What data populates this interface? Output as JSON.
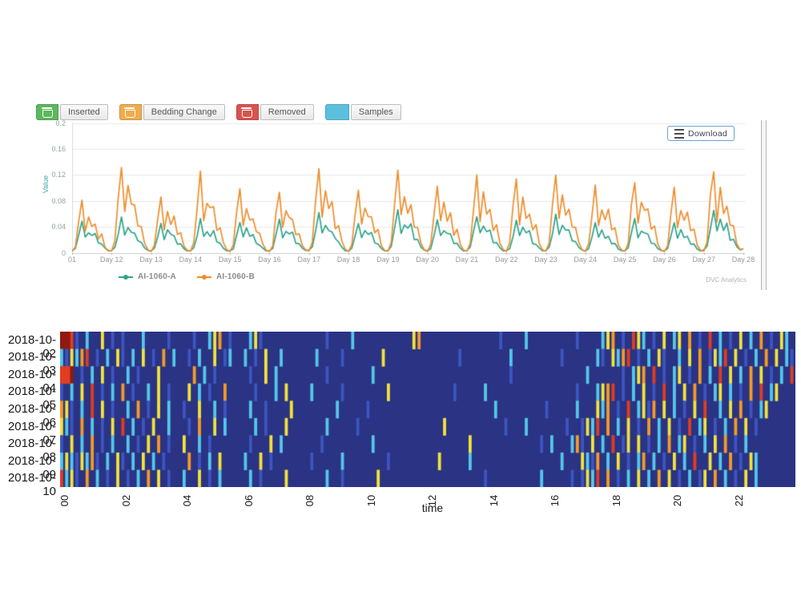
{
  "toolbar": {
    "buttons": [
      {
        "label": "Inserted",
        "color": "#5cb85c",
        "has_icon": true
      },
      {
        "label": "Bedding Change",
        "color": "#f0ad4e",
        "has_icon": true
      },
      {
        "label": "Removed",
        "color": "#d9534f",
        "has_icon": true
      },
      {
        "label": "Samples",
        "color": "#5bc0de",
        "has_icon": false
      }
    ]
  },
  "download": {
    "label": "Download"
  },
  "watermark": "DVC Analytics",
  "chart_data": [
    {
      "type": "line",
      "ylabel": "Value",
      "ylim": [
        0,
        0.2
      ],
      "ytick_labels": [
        "0",
        "0.04",
        "0.08",
        "0.12",
        "0.16",
        "0.2"
      ],
      "yticks": [
        0,
        0.04,
        0.08,
        0.12,
        0.16,
        0.2
      ],
      "xtick_labels": [
        "01",
        "Day 12",
        "Day 13",
        "Day 14",
        "Day 15",
        "Day 16",
        "Day 17",
        "Day 18",
        "Day 19",
        "Day 20",
        "Day 21",
        "Day 22",
        "Day 23",
        "Day 24",
        "Day 25",
        "Day 26",
        "Day 27",
        "Day 28"
      ],
      "grid": true,
      "legend_position": "bottom-left",
      "series": [
        {
          "name": "AI-1060-A",
          "color": "#2fa389",
          "daily_peaks": [
            0.048,
            0.056,
            0.046,
            0.052,
            0.047,
            0.051,
            0.062,
            0.046,
            0.066,
            0.051,
            0.056,
            0.05,
            0.06,
            0.047,
            0.052,
            0.046,
            0.067
          ],
          "day_shape": [
            0.06,
            0.14,
            0.55,
            1.0,
            0.5,
            0.72,
            0.55,
            0.6,
            0.32,
            0.28,
            0.14,
            0.06
          ]
        },
        {
          "name": "AI-1060-B",
          "color": "#ee8d2c",
          "daily_peaks": [
            0.082,
            0.135,
            0.088,
            0.125,
            0.098,
            0.094,
            0.133,
            0.096,
            0.126,
            0.104,
            0.122,
            0.114,
            0.118,
            0.104,
            0.11,
            0.1,
            0.128
          ],
          "day_shape": [
            0.02,
            0.12,
            0.62,
            1.0,
            0.42,
            0.7,
            0.52,
            0.58,
            0.3,
            0.34,
            0.12,
            0.04
          ]
        }
      ]
    },
    {
      "type": "heatmap",
      "xlabel": "time",
      "rows": [
        "2018-10-02",
        "2018-10-03",
        "2018-10-04",
        "2018-10-05",
        "2018-10-06",
        "2018-10-07",
        "2018-10-08",
        "2018-10-09",
        "2018-10-10"
      ],
      "xtick_labels": [
        "00",
        "02",
        "04",
        "06",
        "08",
        "10",
        "12",
        "14",
        "16",
        "18",
        "20",
        "22"
      ],
      "bins_per_row": 144,
      "palette": {
        ".": "#2a3384",
        "b": "#3d55c0",
        "c": "#55c7e8",
        "g": "#9ad14b",
        "y": "#f2e33a",
        "o": "#f59b23",
        "r": "#e23d1f",
        "d": "#8e1a10"
      },
      "pattern": [
        "ddrb.c..y.b.b...c....b....b..cyo.b...cyb............b....c...........yo...............b....c.........b....cyo.b.ryc.b.y.cy.o.b.r.c.b.y.c.o.b.yc.",
        "cbycor.b.c.yb.c.y.b.o.c..b.c..y.bc..c.b.y..c......c....b.......y..............b.........c.........b......cb.ycor.b.c.yb..c.y.o.bycr.y.b.c.o.y.cb",
        "rrd.b.c.y.b..c.b...y......o.c.b......b..y.c.........b........c..........................b..............c......b.cyo.r.b.cy.b.o.c.r.y.c.o.y.b.c.r.",
        "b.c.y.r.b.c.o.b..c.y.b...y.c.b..o.....b...c.y....c.....b........y............b.....c.................b...cyor.b.c.y.b.r.c.y.o.b.cy.c.b.o.r.cy",
        "oyb.c.r.y.b..c.o.b.y.c..b..y..c.b....c..b....y........c.....b........................c.........b.....c...yco.b.r.cybo.y.c.b.y.r..c.y.o.b.cy.",
        "ycb.o.c.b.y.r.c.b.y..c...b.o..y.c.....c.b...y.......c.....b................y...........b...c.......b..bycr.o.c.y.b.o.c.y.b.r.cy.b.c.o.y.b.",
        "b.y.c.o.b.c..c.b.y.o.b..y..c.b.......b...y.c.......b.........c..................y.............b.c...cob.y.c.r.by.y.b.c.o.cy.b.c.y.o.b.c.",
        "cycbycob.c.yb.c.y.c.b....o.b.c.y....c..y.b.......b.....c........b.........y.....c.................c...ycbo.c.y.b.co.c.b.y.c.r..y.c.o.b.yc.",
        "rcyb.o.c.b.y.b.c.o.y.b..c..y.b.c.....c.b....y.......c..b......y....................b..........c.....b.bycr.o.b.c.y.c.o.y.b.c.by.o.c.b.y.c."
      ]
    }
  ]
}
